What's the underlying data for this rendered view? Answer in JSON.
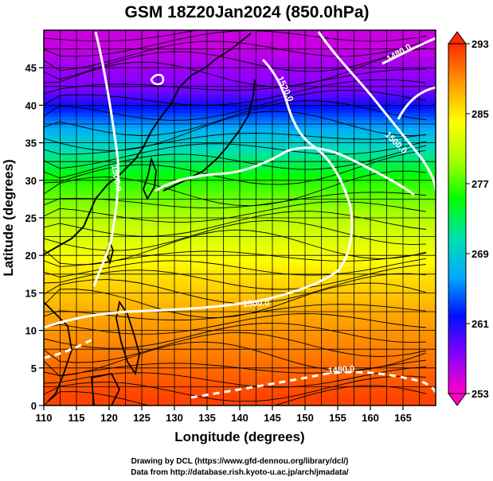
{
  "chart_data": {
    "type": "heatmap",
    "title": "GSM 18Z20Jan2024 (850.0hPa)",
    "xlabel": "Longitude (degrees)",
    "ylabel": "Latitude  (degrees)",
    "xlim": [
      110,
      170
    ],
    "ylim": [
      0,
      50
    ],
    "xticks": [
      110,
      115,
      120,
      125,
      130,
      135,
      140,
      145,
      150,
      155,
      160,
      165
    ],
    "yticks": [
      0,
      5,
      10,
      15,
      20,
      25,
      30,
      35,
      40,
      45
    ],
    "grid": true,
    "colorbar": {
      "min": 253,
      "max": 293,
      "ticks": [
        253,
        261,
        269,
        277,
        285,
        293
      ],
      "colors": [
        "#ff00c8",
        "#8800ff",
        "#0010ff",
        "#00aaff",
        "#00e0b0",
        "#00ff00",
        "#aaff00",
        "#ffff00",
        "#ff9900",
        "#ff2a00"
      ]
    },
    "temperature_bands": [
      {
        "lat": 48,
        "value": 255
      },
      {
        "lat": 42,
        "value": 258
      },
      {
        "lat": 36,
        "value": 268
      },
      {
        "lat": 30,
        "value": 276
      },
      {
        "lat": 24,
        "value": 281
      },
      {
        "lat": 18,
        "value": 285
      },
      {
        "lat": 12,
        "value": 288
      },
      {
        "lat": 6,
        "value": 290
      },
      {
        "lat": 1,
        "value": 292
      }
    ],
    "contour_labels": [
      "1520.0",
      "1500.0",
      "1500.0",
      "1480.0",
      "1500.0",
      "1480.0"
    ]
  },
  "credits": [
    "Drawing by DCL (https://www.gfd-dennou.org/library/dcl/)",
    "Data from http://database.rish.kyoto-u.ac.jp/arch/jmadata/"
  ]
}
